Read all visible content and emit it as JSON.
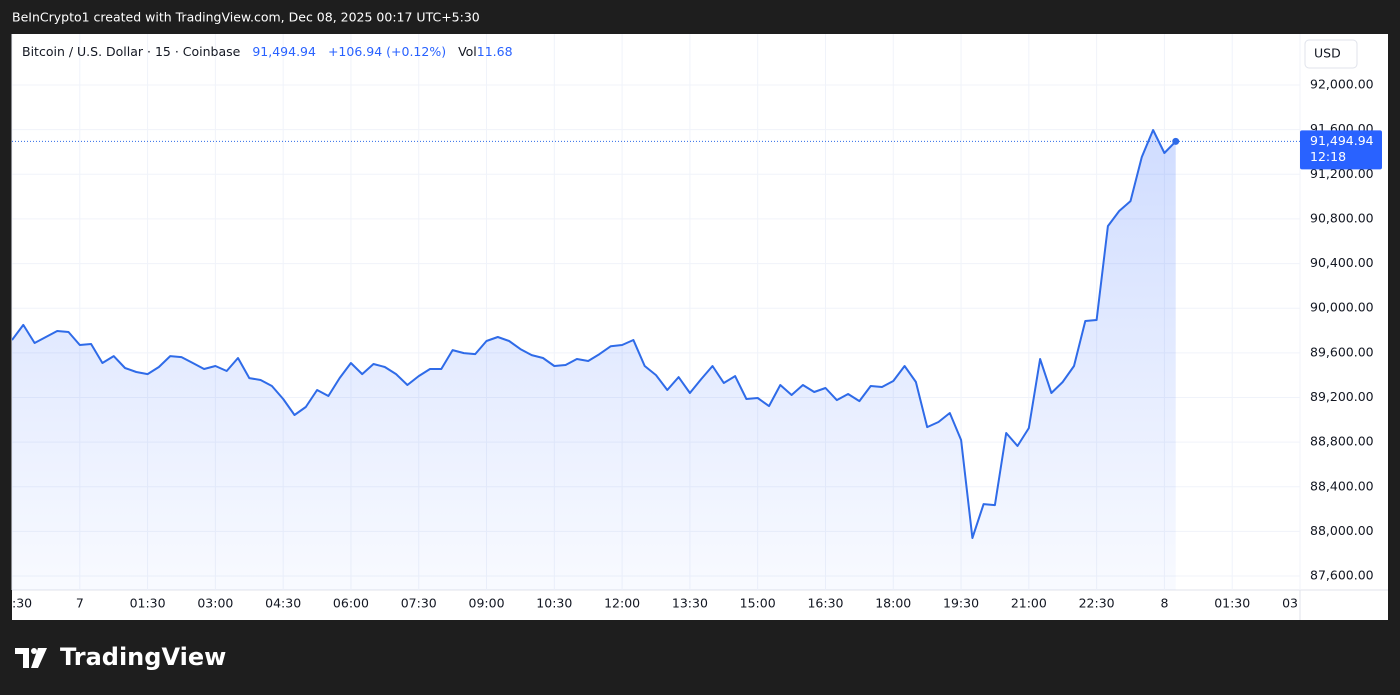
{
  "chart_data": {
    "type": "line",
    "header": "BeInCrypto1 created with TradingView.com, Dec 08, 2025 00:17 UTC+5:30",
    "symbol": "Bitcoin / U.S. Dollar · 15 · Coinbase",
    "last": "91,494.94",
    "change": "+106.94 (+0.12%)",
    "volume_label": "Vol",
    "volume": "11.68",
    "currency": "USD",
    "brand": "TradingView",
    "color": "#2f6be8",
    "grid": true,
    "xlim": [
      0,
      114
    ],
    "xticks": [
      {
        "value": 0,
        "label": ":30"
      },
      {
        "value": 6,
        "label": "7"
      },
      {
        "value": 12,
        "label": "01:30"
      },
      {
        "value": 18,
        "label": "03:00"
      },
      {
        "value": 24,
        "label": "04:30"
      },
      {
        "value": 30,
        "label": "06:00"
      },
      {
        "value": 36,
        "label": "07:30"
      },
      {
        "value": 42,
        "label": "09:00"
      },
      {
        "value": 48,
        "label": "10:30"
      },
      {
        "value": 54,
        "label": "12:00"
      },
      {
        "value": 60,
        "label": "13:30"
      },
      {
        "value": 66,
        "label": "15:00"
      },
      {
        "value": 72,
        "label": "16:30"
      },
      {
        "value": 78,
        "label": "18:00"
      },
      {
        "value": 84,
        "label": "19:30"
      },
      {
        "value": 90,
        "label": "21:00"
      },
      {
        "value": 96,
        "label": "22:30"
      },
      {
        "value": 102,
        "label": "8"
      },
      {
        "value": 108,
        "label": "01:30"
      },
      {
        "value": 114,
        "label": "03"
      }
    ],
    "ylim": [
      87475,
      92457
    ],
    "yticks": [
      {
        "value": 87600,
        "label": "87,600.00"
      },
      {
        "value": 88000,
        "label": "88,000.00"
      },
      {
        "value": 88400,
        "label": "88,400.00"
      },
      {
        "value": 88800,
        "label": "88,800.00"
      },
      {
        "value": 89200,
        "label": "89,200.00"
      },
      {
        "value": 89600,
        "label": "89,600.00"
      },
      {
        "value": 90000,
        "label": "90,000.00"
      },
      {
        "value": 90400,
        "label": "90,400.00"
      },
      {
        "value": 90800,
        "label": "90,800.00"
      },
      {
        "value": 91200,
        "label": "91,200.00"
      },
      {
        "value": 91600,
        "label": "91,600.00"
      },
      {
        "value": 92000,
        "label": "92,000.00"
      }
    ],
    "price_tag": {
      "value": 91494.94,
      "label": "91,494.94",
      "countdown": "12:18"
    },
    "values": [
      89715,
      89850,
      89688,
      89742,
      89796,
      89787,
      89670,
      89679,
      89509,
      89571,
      89464,
      89428,
      89410,
      89473,
      89571,
      89562,
      89509,
      89455,
      89482,
      89437,
      89554,
      89374,
      89357,
      89303,
      89186,
      89043,
      89115,
      89267,
      89213,
      89374,
      89509,
      89410,
      89500,
      89473,
      89410,
      89312,
      89392,
      89455,
      89455,
      89625,
      89598,
      89589,
      89706,
      89742,
      89706,
      89634,
      89580,
      89554,
      89482,
      89491,
      89545,
      89527,
      89589,
      89660,
      89670,
      89715,
      89482,
      89401,
      89267,
      89383,
      89240,
      89365,
      89482,
      89330,
      89392,
      89186,
      89195,
      89123,
      89312,
      89222,
      89312,
      89249,
      89285,
      89177,
      89231,
      89168,
      89303,
      89294,
      89348,
      89482,
      89339,
      88935,
      88980,
      89061,
      88819,
      87941,
      88245,
      88236,
      88882,
      88765,
      88926,
      89545,
      89240,
      89339,
      89482,
      89885,
      89894,
      90736,
      90871,
      90960,
      91355,
      91597,
      91391,
      91494.94
    ]
  }
}
